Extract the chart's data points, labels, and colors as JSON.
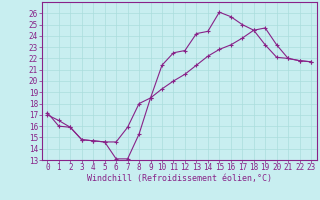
{
  "xlabel": "Windchill (Refroidissement éolien,°C)",
  "xlim": [
    -0.5,
    23.5
  ],
  "ylim": [
    13,
    27
  ],
  "yticks": [
    13,
    14,
    15,
    16,
    17,
    18,
    19,
    20,
    21,
    22,
    23,
    24,
    25,
    26
  ],
  "xticks": [
    0,
    1,
    2,
    3,
    4,
    5,
    6,
    7,
    8,
    9,
    10,
    11,
    12,
    13,
    14,
    15,
    16,
    17,
    18,
    19,
    20,
    21,
    22,
    23
  ],
  "line_color": "#882288",
  "bg_color": "#c8eef0",
  "grid_color": "#aadddd",
  "line1_x": [
    0,
    1,
    2,
    3,
    4,
    5,
    6,
    7,
    8,
    9,
    10,
    11,
    12,
    13,
    14,
    15,
    16,
    17,
    18,
    19,
    20,
    21,
    22,
    23
  ],
  "line1_y": [
    17.0,
    16.5,
    15.9,
    14.8,
    14.7,
    14.6,
    13.1,
    13.1,
    15.3,
    18.5,
    21.4,
    22.5,
    22.7,
    24.2,
    24.4,
    26.1,
    25.7,
    25.0,
    24.5,
    23.2,
    22.1,
    22.0,
    21.8,
    21.7
  ],
  "line2_x": [
    0,
    1,
    2,
    3,
    4,
    5,
    6,
    7,
    8,
    9,
    10,
    11,
    12,
    13,
    14,
    15,
    16,
    17,
    18,
    19,
    20,
    21,
    22,
    23
  ],
  "line2_y": [
    17.2,
    16.0,
    15.9,
    14.8,
    14.7,
    14.6,
    14.6,
    15.9,
    18.0,
    18.5,
    19.3,
    20.0,
    20.6,
    21.4,
    22.2,
    22.8,
    23.2,
    23.8,
    24.5,
    24.7,
    23.2,
    22.0,
    21.8,
    21.7
  ],
  "tick_fontsize": 5.5,
  "xlabel_fontsize": 6.0,
  "spine_linewidth": 0.8,
  "line_linewidth": 0.8,
  "marker_size": 3.0
}
